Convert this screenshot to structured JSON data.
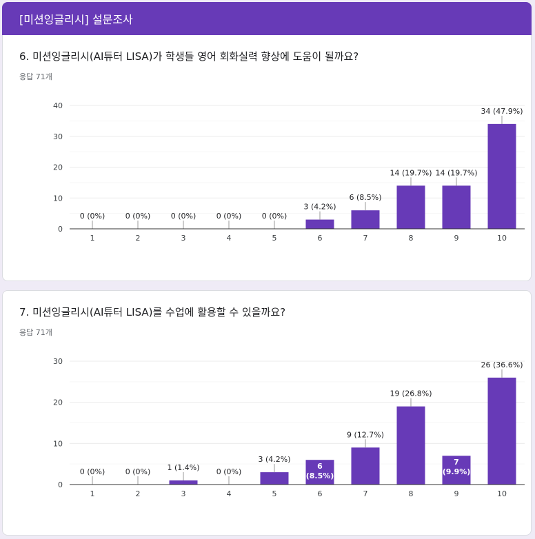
{
  "header": {
    "title": "[미션잉글리시] 설문조사"
  },
  "colors": {
    "accent": "#673ab7",
    "bar": "#673ab7",
    "grid": "#ebebeb",
    "axis": "#333333",
    "leader": "#999999"
  },
  "questions": [
    {
      "title": "6. 미션잉글리시(AI튜터 LISA)가 학생들 영어 회화실력 향상에 도움이 될까요?",
      "responses": "응답 71개"
    },
    {
      "title": "7. 미션잉글리시(AI튜터 LISA)를 수업에 활용할 수 있을까요?",
      "responses": "응답 71개"
    }
  ],
  "chart_data": [
    {
      "type": "bar",
      "title": "6. 미션잉글리시(AI튜터 LISA)가 학생들 영어 회화실력 향상에 도움이 될까요?",
      "categories": [
        "1",
        "2",
        "3",
        "4",
        "5",
        "6",
        "7",
        "8",
        "9",
        "10"
      ],
      "values": [
        0,
        0,
        0,
        0,
        0,
        3,
        6,
        14,
        14,
        34
      ],
      "labels": [
        "0 (0%)",
        "0 (0%)",
        "0 (0%)",
        "0 (0%)",
        "0 (0%)",
        "3 (4.2%)",
        "6 (8.5%)",
        "14 (19.7%)",
        "14 (19.7%)",
        "34 (47.9%)"
      ],
      "inside": [
        false,
        false,
        false,
        false,
        false,
        false,
        false,
        false,
        false,
        false
      ],
      "yticks": [
        0,
        10,
        20,
        30,
        40
      ],
      "ylim": [
        0,
        40
      ],
      "grid": true
    },
    {
      "type": "bar",
      "title": "7. 미션잉글리시(AI튜터 LISA)를 수업에 활용할 수 있을까요?",
      "categories": [
        "1",
        "2",
        "3",
        "4",
        "5",
        "6",
        "7",
        "8",
        "9",
        "10"
      ],
      "values": [
        0,
        0,
        1,
        0,
        3,
        6,
        9,
        19,
        7,
        26
      ],
      "labels": [
        "0 (0%)",
        "0 (0%)",
        "1 (1.4%)",
        "0 (0%)",
        "3 (4.2%)",
        "6|(8.5%)",
        "9 (12.7%)",
        "19 (26.8%)",
        "7|(9.9%)",
        "26 (36.6%)"
      ],
      "inside": [
        false,
        false,
        false,
        false,
        false,
        true,
        false,
        false,
        true,
        false
      ],
      "yticks": [
        0,
        10,
        20,
        30
      ],
      "ylim": [
        0,
        30
      ],
      "grid": true
    }
  ]
}
